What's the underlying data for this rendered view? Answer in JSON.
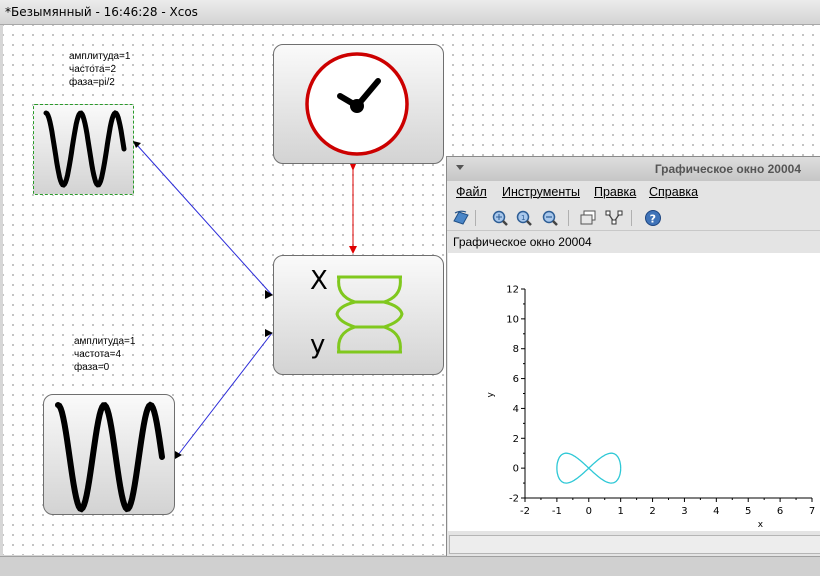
{
  "window": {
    "title": "*Безымянный - 16:46:28 - Xcos"
  },
  "blocks": {
    "sine1": {
      "params": [
        "амплитуда=1",
        "частота=2",
        "фаза=pi/2"
      ]
    },
    "sine2": {
      "params": [
        "амплитуда=1",
        "частота=4",
        "фаза=0"
      ]
    },
    "scope": {
      "x_label": "X",
      "y_label": "у"
    }
  },
  "colors": {
    "clock": "#cc0000",
    "wave": "#000000",
    "scope": "#80c81e",
    "data_link": "#2b2bd9",
    "event_link": "#e00000",
    "curve": "#2ec8d6"
  },
  "graphic_window": {
    "title": "Графическое окно 20004",
    "menu": [
      "Файл",
      "Инструменты",
      "Правка",
      "Справка"
    ],
    "toolbar_icons": [
      "rotate-icon",
      "zoom-in-icon",
      "zoom-fit-icon",
      "zoom-out-icon",
      "datatip-icon",
      "edit-curve-icon",
      "help-icon"
    ],
    "label": "Графическое окно 20004"
  },
  "chart_data": {
    "type": "line",
    "ylabel": "y",
    "xlabel": "x",
    "xlim": [
      -2,
      7
    ],
    "ylim": [
      -2,
      12
    ],
    "x_ticks": [
      -2,
      -1,
      0,
      1,
      2,
      3,
      4,
      5,
      6,
      7
    ],
    "y_ticks": [
      -2,
      0,
      2,
      4,
      6,
      8,
      10,
      12
    ],
    "series": [
      {
        "curve": "x = sin(2t + pi/2), y = sin(4t)",
        "t_range": [
          0,
          6.2832
        ]
      }
    ]
  }
}
